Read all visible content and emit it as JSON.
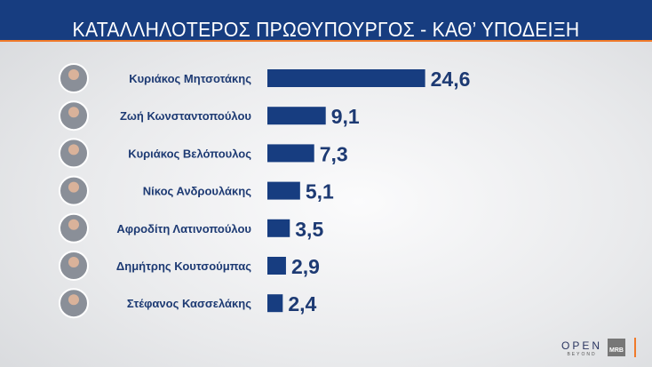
{
  "header": {
    "title": "ΚΑΤΑΛΛΗΛΟΤΕΡΟΣ  ΠΡΩΘΥΠΟΥΡΓΟΣ - ΚΑΘ’ ΥΠΟΔΕΙΞΗ"
  },
  "chart_data": {
    "type": "bar",
    "orientation": "horizontal",
    "title": "ΚΑΤΑΛΛΗΛΟΤΕΡΟΣ  ΠΡΩΘΥΠΟΥΡΓΟΣ - ΚΑΘ’ ΥΠΟΔΕΙΞΗ",
    "categories": [
      "Κυριάκος Μητσοτάκης",
      "Ζωή Κωνσταντοπούλου",
      "Κυριάκος Βελόπουλος",
      "Νίκος Ανδρουλάκης",
      "Αφροδίτη Λατινοπούλου",
      "Δημήτρης Κουτσούμπας",
      "Στέφανος Κασσελάκης"
    ],
    "values": [
      24.6,
      9.1,
      7.3,
      5.1,
      3.5,
      2.9,
      2.4
    ],
    "value_labels": [
      "24,6",
      "9,1",
      "7,3",
      "5,1",
      "3,5",
      "2,9",
      "2,4"
    ],
    "bar_color": "#173d80",
    "grid": false
  },
  "branding": {
    "logo": "OPEN",
    "logo_sub": "BEYOND",
    "partner": "MRB"
  },
  "colors": {
    "header": "#173d80",
    "accent": "#f07a2a",
    "text": "#1d3a73"
  }
}
